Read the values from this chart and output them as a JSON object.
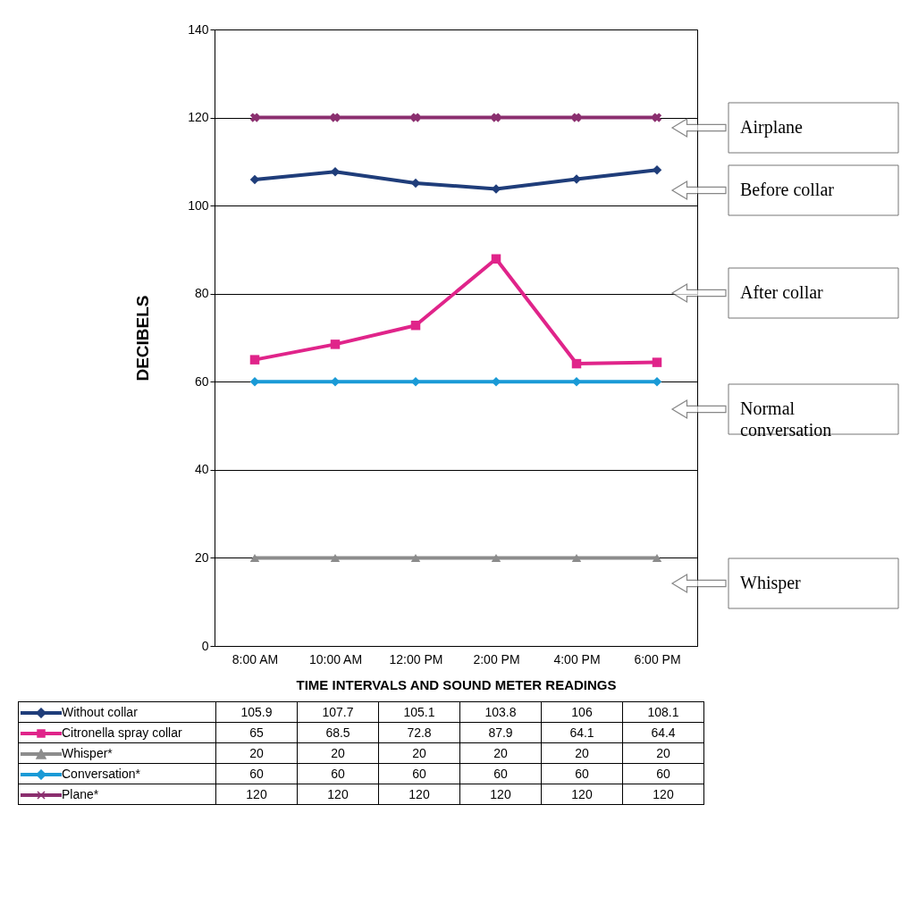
{
  "chart_data": {
    "type": "line",
    "xlabel": "TIME INTERVALS AND SOUND METER READINGS",
    "ylabel": "DECIBELS",
    "categories": [
      "8:00 AM",
      "10:00 AM",
      "12:00 PM",
      "2:00 PM",
      "4:00 PM",
      "6:00 PM"
    ],
    "series": [
      {
        "name": "Without collar",
        "color": "#1f3d7a",
        "marker": "diamond",
        "values": [
          105.9,
          107.7,
          105.1,
          103.8,
          106,
          108.1
        ]
      },
      {
        "name": "Citronella spray collar",
        "color": "#e0248a",
        "marker": "square",
        "values": [
          65,
          68.5,
          72.8,
          87.9,
          64.1,
          64.4
        ]
      },
      {
        "name": "Whisper*",
        "color": "#8c8c8c",
        "marker": "triangle",
        "values": [
          20,
          20,
          20,
          20,
          20,
          20
        ]
      },
      {
        "name": "Conversation*",
        "color": "#1a9ad6",
        "marker": "diamond",
        "values": [
          60,
          60,
          60,
          60,
          60,
          60
        ]
      },
      {
        "name": "Plane*",
        "color": "#8b2f6f",
        "marker": "cross",
        "values": [
          120,
          120,
          120,
          120,
          120,
          120
        ]
      }
    ],
    "ylim": [
      0,
      140
    ],
    "yticks": [
      0,
      20,
      40,
      60,
      80,
      100,
      120,
      140
    ],
    "grid": "y",
    "legend": "bottom",
    "data_labels": true,
    "line_style": "solid",
    "annotations": [
      "Airplane",
      "Before collar",
      "After collar",
      "Normal conversation",
      "Whisper"
    ]
  }
}
